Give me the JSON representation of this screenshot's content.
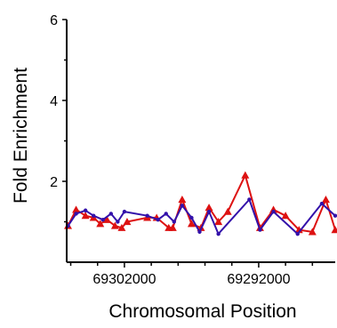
{
  "chart_data": {
    "type": "line",
    "title": "",
    "xlabel": "Chromosomal Position",
    "ylabel": "Fold Enrichment",
    "xlim": [
      69306300,
      69286300
    ],
    "ylim": [
      0,
      6
    ],
    "x_ticks": [
      69302000,
      69292000
    ],
    "x_minor_ticks": [
      69306000,
      69304000,
      69300000,
      69298000,
      69296000,
      69294000,
      69290000,
      69288000,
      69286000
    ],
    "y_ticks": [
      2,
      4,
      6
    ],
    "y_minor_ticks": [
      1,
      3,
      5
    ],
    "grid": false,
    "legend": "none",
    "series": [
      {
        "color": "#dd1111",
        "marker": "triangle",
        "x": [
          69306200,
          69305600,
          69304900,
          69304300,
          69303800,
          69303300,
          69302700,
          69302200,
          69301800,
          69300300,
          69299600,
          69298700,
          69298400,
          69297700,
          69297000,
          69296300,
          69295700,
          69295000,
          69294300,
          69293000,
          69291900,
          69290900,
          69290000,
          69289000,
          69288000,
          69287000,
          69286300
        ],
        "y": [
          0.9,
          1.3,
          1.15,
          1.1,
          0.95,
          1.05,
          0.9,
          0.85,
          1.0,
          1.1,
          1.1,
          0.85,
          0.85,
          1.55,
          0.95,
          0.85,
          1.35,
          1.0,
          1.25,
          2.15,
          0.85,
          1.3,
          1.15,
          0.8,
          0.75,
          1.55,
          0.8
        ]
      },
      {
        "color": "#3311aa",
        "marker": "dot",
        "x": [
          69306200,
          69305600,
          69304900,
          69304300,
          69303600,
          69303000,
          69302500,
          69302000,
          69300300,
          69299500,
          69298900,
          69298300,
          69297700,
          69297000,
          69296400,
          69295700,
          69295000,
          69292700,
          69291900,
          69290900,
          69289100,
          69287300,
          69286300
        ],
        "y": [
          0.9,
          1.2,
          1.28,
          1.15,
          1.05,
          1.2,
          1.0,
          1.25,
          1.15,
          1.05,
          1.2,
          1.0,
          1.4,
          1.1,
          0.75,
          1.25,
          0.7,
          1.55,
          0.8,
          1.25,
          0.7,
          1.45,
          1.15
        ]
      }
    ]
  }
}
